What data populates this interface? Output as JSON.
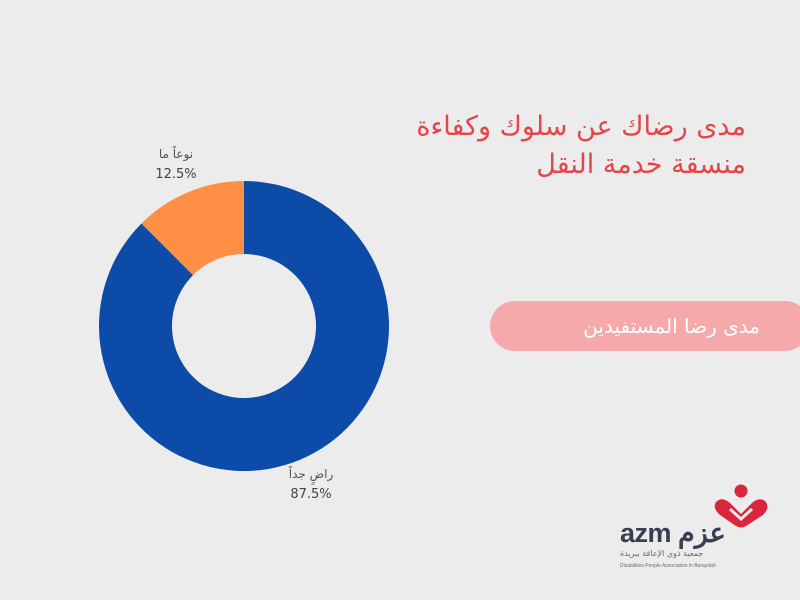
{
  "chart_data": {
    "type": "pie",
    "donut": true,
    "title": "مدى رضاك عن سلوك وكفاءة منسقة خدمة النقل",
    "categories": [
      "راضٍ جداً",
      "نوعاً ما"
    ],
    "values": [
      87.5,
      12.5
    ],
    "value_labels": [
      "87.5%",
      "12.5%"
    ],
    "colors": [
      "#0d4ba8",
      "#ff8f45"
    ]
  },
  "title": {
    "line1": "مدى رضاك عن سلوك وكفاءة",
    "line2": "منسقة خدمة النقل"
  },
  "section_label": "مدى رضا المستفيدين",
  "logo": {
    "wordmark": "azm عزم",
    "arabic_subtitle": "جمعية ذوي الإعاقة ببريدة",
    "english_subtitle": "Disabilities People Association in Buraydah",
    "colors": {
      "heart": "#d9263d",
      "text": "#3b3d52"
    }
  }
}
